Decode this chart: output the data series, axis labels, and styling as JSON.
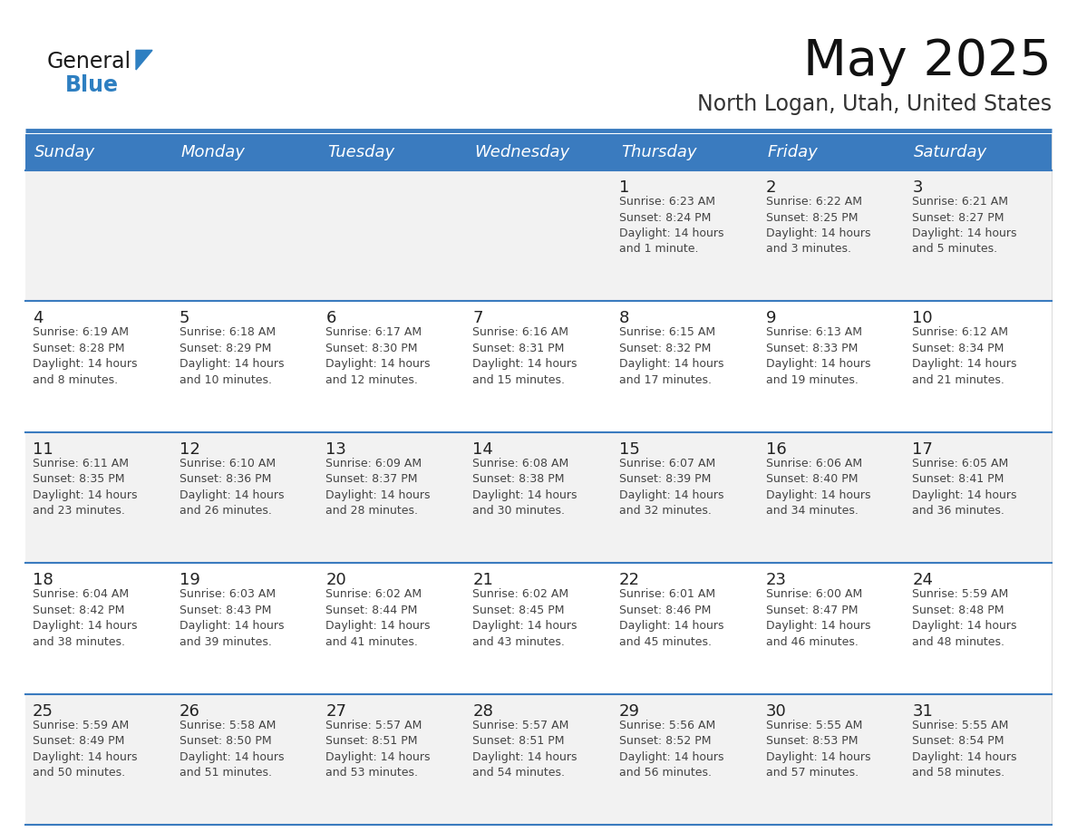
{
  "title": "May 2025",
  "subtitle": "North Logan, Utah, United States",
  "days_of_week": [
    "Sunday",
    "Monday",
    "Tuesday",
    "Wednesday",
    "Thursday",
    "Friday",
    "Saturday"
  ],
  "header_bg": "#3a7bbf",
  "header_text": "#ffffff",
  "row_bg_odd": "#f2f2f2",
  "row_bg_even": "#ffffff",
  "separator_color": "#3a7bbf",
  "cell_text_color": "#444444",
  "day_num_color": "#222222",
  "background_color": "#ffffff",
  "weeks": [
    [
      {
        "day": null,
        "info": null
      },
      {
        "day": null,
        "info": null
      },
      {
        "day": null,
        "info": null
      },
      {
        "day": null,
        "info": null
      },
      {
        "day": 1,
        "info": "Sunrise: 6:23 AM\nSunset: 8:24 PM\nDaylight: 14 hours\nand 1 minute."
      },
      {
        "day": 2,
        "info": "Sunrise: 6:22 AM\nSunset: 8:25 PM\nDaylight: 14 hours\nand 3 minutes."
      },
      {
        "day": 3,
        "info": "Sunrise: 6:21 AM\nSunset: 8:27 PM\nDaylight: 14 hours\nand 5 minutes."
      }
    ],
    [
      {
        "day": 4,
        "info": "Sunrise: 6:19 AM\nSunset: 8:28 PM\nDaylight: 14 hours\nand 8 minutes."
      },
      {
        "day": 5,
        "info": "Sunrise: 6:18 AM\nSunset: 8:29 PM\nDaylight: 14 hours\nand 10 minutes."
      },
      {
        "day": 6,
        "info": "Sunrise: 6:17 AM\nSunset: 8:30 PM\nDaylight: 14 hours\nand 12 minutes."
      },
      {
        "day": 7,
        "info": "Sunrise: 6:16 AM\nSunset: 8:31 PM\nDaylight: 14 hours\nand 15 minutes."
      },
      {
        "day": 8,
        "info": "Sunrise: 6:15 AM\nSunset: 8:32 PM\nDaylight: 14 hours\nand 17 minutes."
      },
      {
        "day": 9,
        "info": "Sunrise: 6:13 AM\nSunset: 8:33 PM\nDaylight: 14 hours\nand 19 minutes."
      },
      {
        "day": 10,
        "info": "Sunrise: 6:12 AM\nSunset: 8:34 PM\nDaylight: 14 hours\nand 21 minutes."
      }
    ],
    [
      {
        "day": 11,
        "info": "Sunrise: 6:11 AM\nSunset: 8:35 PM\nDaylight: 14 hours\nand 23 minutes."
      },
      {
        "day": 12,
        "info": "Sunrise: 6:10 AM\nSunset: 8:36 PM\nDaylight: 14 hours\nand 26 minutes."
      },
      {
        "day": 13,
        "info": "Sunrise: 6:09 AM\nSunset: 8:37 PM\nDaylight: 14 hours\nand 28 minutes."
      },
      {
        "day": 14,
        "info": "Sunrise: 6:08 AM\nSunset: 8:38 PM\nDaylight: 14 hours\nand 30 minutes."
      },
      {
        "day": 15,
        "info": "Sunrise: 6:07 AM\nSunset: 8:39 PM\nDaylight: 14 hours\nand 32 minutes."
      },
      {
        "day": 16,
        "info": "Sunrise: 6:06 AM\nSunset: 8:40 PM\nDaylight: 14 hours\nand 34 minutes."
      },
      {
        "day": 17,
        "info": "Sunrise: 6:05 AM\nSunset: 8:41 PM\nDaylight: 14 hours\nand 36 minutes."
      }
    ],
    [
      {
        "day": 18,
        "info": "Sunrise: 6:04 AM\nSunset: 8:42 PM\nDaylight: 14 hours\nand 38 minutes."
      },
      {
        "day": 19,
        "info": "Sunrise: 6:03 AM\nSunset: 8:43 PM\nDaylight: 14 hours\nand 39 minutes."
      },
      {
        "day": 20,
        "info": "Sunrise: 6:02 AM\nSunset: 8:44 PM\nDaylight: 14 hours\nand 41 minutes."
      },
      {
        "day": 21,
        "info": "Sunrise: 6:02 AM\nSunset: 8:45 PM\nDaylight: 14 hours\nand 43 minutes."
      },
      {
        "day": 22,
        "info": "Sunrise: 6:01 AM\nSunset: 8:46 PM\nDaylight: 14 hours\nand 45 minutes."
      },
      {
        "day": 23,
        "info": "Sunrise: 6:00 AM\nSunset: 8:47 PM\nDaylight: 14 hours\nand 46 minutes."
      },
      {
        "day": 24,
        "info": "Sunrise: 5:59 AM\nSunset: 8:48 PM\nDaylight: 14 hours\nand 48 minutes."
      }
    ],
    [
      {
        "day": 25,
        "info": "Sunrise: 5:59 AM\nSunset: 8:49 PM\nDaylight: 14 hours\nand 50 minutes."
      },
      {
        "day": 26,
        "info": "Sunrise: 5:58 AM\nSunset: 8:50 PM\nDaylight: 14 hours\nand 51 minutes."
      },
      {
        "day": 27,
        "info": "Sunrise: 5:57 AM\nSunset: 8:51 PM\nDaylight: 14 hours\nand 53 minutes."
      },
      {
        "day": 28,
        "info": "Sunrise: 5:57 AM\nSunset: 8:51 PM\nDaylight: 14 hours\nand 54 minutes."
      },
      {
        "day": 29,
        "info": "Sunrise: 5:56 AM\nSunset: 8:52 PM\nDaylight: 14 hours\nand 56 minutes."
      },
      {
        "day": 30,
        "info": "Sunrise: 5:55 AM\nSunset: 8:53 PM\nDaylight: 14 hours\nand 57 minutes."
      },
      {
        "day": 31,
        "info": "Sunrise: 5:55 AM\nSunset: 8:54 PM\nDaylight: 14 hours\nand 58 minutes."
      }
    ]
  ],
  "logo_general_color": "#1a1a1a",
  "logo_blue_color": "#2e7fc1",
  "logo_triangle_color": "#2e7fc1",
  "fig_width": 11.88,
  "fig_height": 9.18,
  "dpi": 100
}
